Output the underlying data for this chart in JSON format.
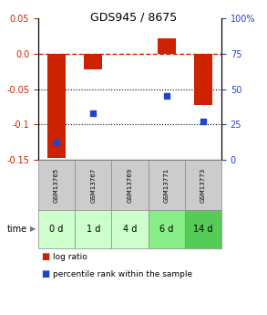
{
  "title": "GDS945 / 8675",
  "samples": [
    "GSM13765",
    "GSM13767",
    "GSM13769",
    "GSM13771",
    "GSM13773"
  ],
  "time_labels": [
    "0 d",
    "1 d",
    "4 d",
    "6 d",
    "14 d"
  ],
  "log_ratio": [
    -0.148,
    -0.022,
    0.0,
    0.022,
    -0.072
  ],
  "percentile_rank": [
    12,
    33,
    null,
    45,
    27
  ],
  "ylim_left": [
    -0.15,
    0.05
  ],
  "ylim_right": [
    0,
    100
  ],
  "yticks_left": [
    0.05,
    0.0,
    -0.05,
    -0.1,
    -0.15
  ],
  "yticks_right": [
    100,
    75,
    50,
    25,
    0
  ],
  "bar_color": "#cc2200",
  "dot_color": "#2244cc",
  "ref_line_y": 0.0,
  "dotted_lines": [
    -0.05,
    -0.1
  ],
  "time_bg_colors": [
    "#ccffcc",
    "#ccffcc",
    "#ccffcc",
    "#88ee88",
    "#55cc55"
  ],
  "label_bg_color": "#cccccc",
  "legend_bar_label": "log ratio",
  "legend_dot_label": "percentile rank within the sample",
  "bar_width": 0.5
}
